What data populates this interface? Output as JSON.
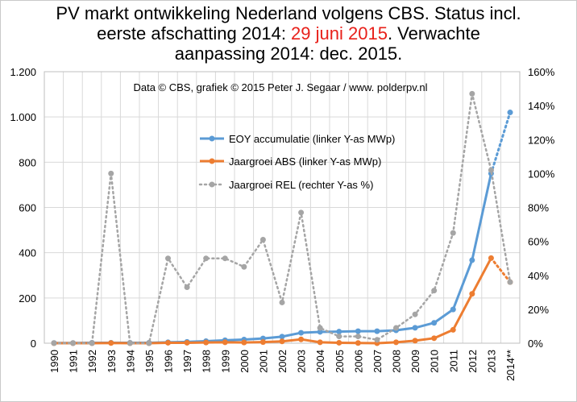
{
  "title": {
    "line1": "PV markt ontwikkeling Nederland volgens CBS. Status incl.",
    "line2_pre": "eerste afschatting 2014: ",
    "line2_date": "29 juni 2015",
    "line2_post": ". Verwachte",
    "line3": "aanpassing 2014: dec. 2015."
  },
  "credit": "Data © CBS, grafiek © 2015 Peter J. Segaar / www. polderpv.nl",
  "colors": {
    "eoy": "#5b9bd5",
    "abs": "#ed7d31",
    "rel": "#a5a5a5",
    "title_highlight": "#e8201a",
    "grid": "#d9d9d9"
  },
  "chart_data": {
    "type": "line",
    "categories": [
      "1990",
      "1991",
      "1992",
      "1993",
      "1994",
      "1995",
      "1996",
      "1997",
      "1998",
      "1999",
      "2000",
      "2001",
      "2002",
      "2003",
      "2004",
      "2005",
      "2006",
      "2007",
      "2008",
      "2009",
      "2010",
      "2011",
      "2012",
      "2013",
      "2014**"
    ],
    "left_axis": {
      "ylim": [
        0,
        1200
      ],
      "ticks": [
        0,
        200,
        400,
        600,
        800,
        1000,
        1200
      ],
      "tick_labels": [
        "0",
        "200",
        "400",
        "600",
        "800",
        "1.000",
        "1.200"
      ]
    },
    "right_axis": {
      "ylim": [
        0,
        160
      ],
      "ticks": [
        0,
        20,
        40,
        60,
        80,
        100,
        120,
        140,
        160
      ],
      "tick_labels": [
        "0%",
        "20%",
        "40%",
        "60%",
        "80%",
        "100%",
        "120%",
        "140%",
        "160%"
      ]
    },
    "grid": true,
    "legend_position": "center-left",
    "series": [
      {
        "name": "EOY accumulatie (linker Y-as MWp)",
        "axis": "left",
        "style": "solid",
        "estimate_last_dotted": true,
        "values": [
          1,
          1,
          2,
          2,
          2,
          2,
          4,
          6,
          9,
          13,
          16,
          21,
          29,
          46,
          50,
          51,
          53,
          53,
          57,
          68,
          90,
          149,
          367,
          750,
          1020
        ]
      },
      {
        "name": "Jaargroei ABS (linker Y-as MWp)",
        "axis": "left",
        "style": "solid",
        "estimate_last_dotted": true,
        "values": [
          0,
          0,
          0,
          1,
          0,
          0,
          2,
          2,
          3,
          4,
          3,
          5,
          8,
          17,
          4,
          2,
          1,
          0,
          4,
          11,
          22,
          59,
          218,
          376,
          270
        ]
      },
      {
        "name": "Jaargroei REL (rechter Y-as %)",
        "axis": "right",
        "style": "dotted",
        "values": [
          0,
          0,
          0,
          100,
          0,
          0,
          50,
          33,
          50,
          50,
          45,
          61,
          24,
          77,
          9,
          4,
          4,
          2,
          9,
          17,
          31,
          65,
          147,
          102,
          36
        ]
      }
    ]
  }
}
